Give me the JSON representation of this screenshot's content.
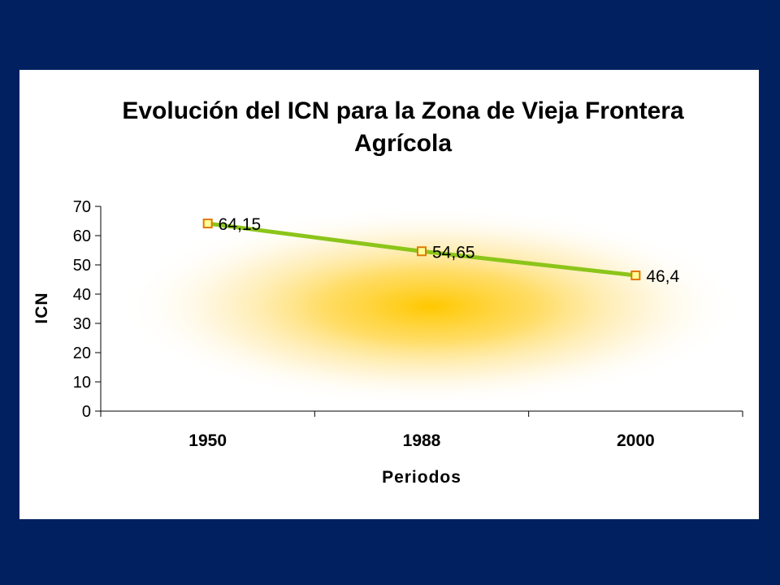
{
  "chart_data": {
    "type": "line",
    "title_lines": [
      "Evolución del ICN para la Zona de Vieja Frontera",
      "Agrícola"
    ],
    "xlabel": "Periodos",
    "ylabel": "ICN",
    "categories": [
      "1950",
      "1988",
      "2000"
    ],
    "series": [
      {
        "values": [
          64.15,
          54.65,
          46.4
        ],
        "data_labels": [
          "64,15",
          "54,65",
          "46,4"
        ]
      }
    ],
    "ylim": [
      0,
      70
    ],
    "y_ticks": [
      0,
      10,
      20,
      30,
      40,
      50,
      60,
      70
    ],
    "grid": false,
    "legend": "none",
    "colors": {
      "line": "#8CC51A",
      "marker_edge": "#E07800",
      "marker_fill": "#FFFF99",
      "plot_glow": "#FFC800",
      "background": "#002060"
    }
  }
}
